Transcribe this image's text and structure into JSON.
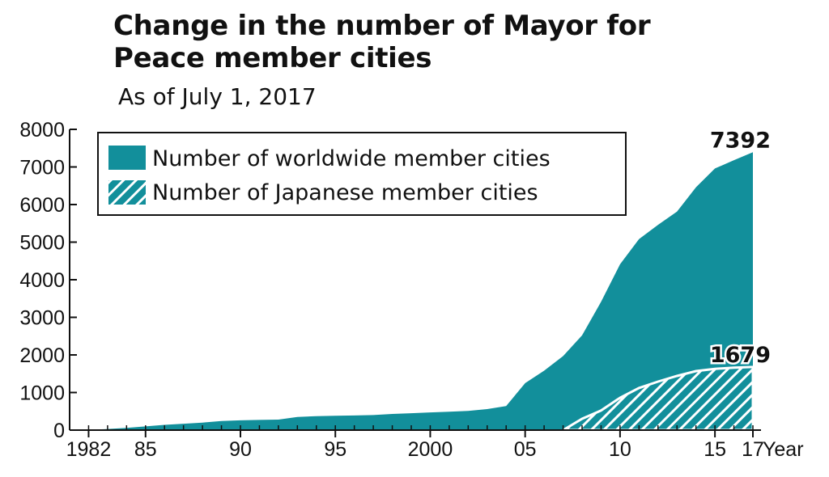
{
  "chart_data": {
    "type": "area",
    "title": "Change in the number of Mayor for Peace member cities",
    "subtitle": "As of July 1, 2017",
    "xlabel": "Year",
    "ylabel": "",
    "xlim": [
      1981,
      2017
    ],
    "ylim": [
      0,
      8000
    ],
    "yticks": [
      0,
      1000,
      2000,
      3000,
      4000,
      5000,
      6000,
      7000,
      8000
    ],
    "xticks": [
      {
        "x": 1982,
        "label": "1982"
      },
      {
        "x": 1985,
        "label": "85"
      },
      {
        "x": 1990,
        "label": "90"
      },
      {
        "x": 1995,
        "label": "95"
      },
      {
        "x": 2000,
        "label": "2000"
      },
      {
        "x": 2005,
        "label": "05"
      },
      {
        "x": 2010,
        "label": "10"
      },
      {
        "x": 2015,
        "label": "15"
      },
      {
        "x": 2017,
        "label": "17"
      }
    ],
    "legend_position": "top-left",
    "series": [
      {
        "name": "Number of worldwide member cities",
        "pattern": "solid",
        "color": "#128f9b",
        "x": [
          1982,
          1983,
          1984,
          1985,
          1986,
          1987,
          1988,
          1989,
          1990,
          1991,
          1992,
          1993,
          1994,
          1995,
          1996,
          1997,
          1998,
          1999,
          2000,
          2001,
          2002,
          2003,
          2004,
          2005,
          2006,
          2007,
          2008,
          2009,
          2010,
          2011,
          2012,
          2013,
          2014,
          2015,
          2016,
          2017
        ],
        "values": [
          0,
          30,
          60,
          100,
          140,
          170,
          200,
          240,
          260,
          270,
          280,
          350,
          370,
          380,
          390,
          400,
          430,
          450,
          470,
          490,
          510,
          560,
          640,
          1250,
          1580,
          1970,
          2520,
          3410,
          4410,
          5080,
          5460,
          5810,
          6460,
          6960,
          7180,
          7392
        ],
        "end_label": "7392"
      },
      {
        "name": "Number of Japanese member cities",
        "pattern": "hatched",
        "color": "#128f9b",
        "x": [
          2007,
          2008,
          2009,
          2010,
          2011,
          2012,
          2013,
          2014,
          2015,
          2016,
          2017
        ],
        "values": [
          0,
          300,
          520,
          860,
          1120,
          1290,
          1440,
          1570,
          1630,
          1660,
          1679
        ],
        "end_label": "1679"
      }
    ]
  }
}
